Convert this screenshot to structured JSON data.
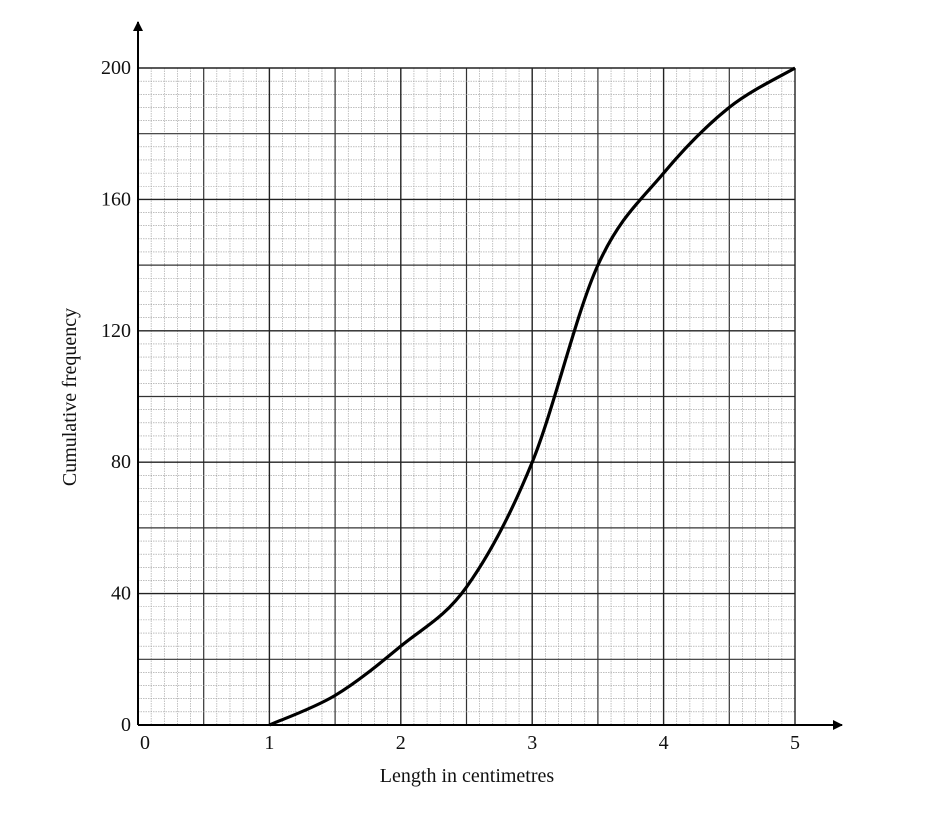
{
  "chart_data": {
    "type": "line",
    "x_label": "Length in centimetres",
    "y_label": "Cumulative frequency",
    "series": [
      {
        "name": "Cumulative frequency",
        "color": "#000000",
        "x": [
          1,
          1.5,
          2,
          2.5,
          3,
          3.5,
          4,
          4.5,
          5
        ],
        "values": [
          0,
          9,
          24,
          42,
          80,
          140,
          168,
          188,
          200
        ]
      }
    ],
    "xlim": [
      0,
      5
    ],
    "ylim": [
      0,
      200
    ],
    "xticks": [
      0,
      1,
      2,
      3,
      4,
      5
    ],
    "yticks": [
      0,
      40,
      80,
      120,
      160,
      200
    ],
    "grid": true
  }
}
